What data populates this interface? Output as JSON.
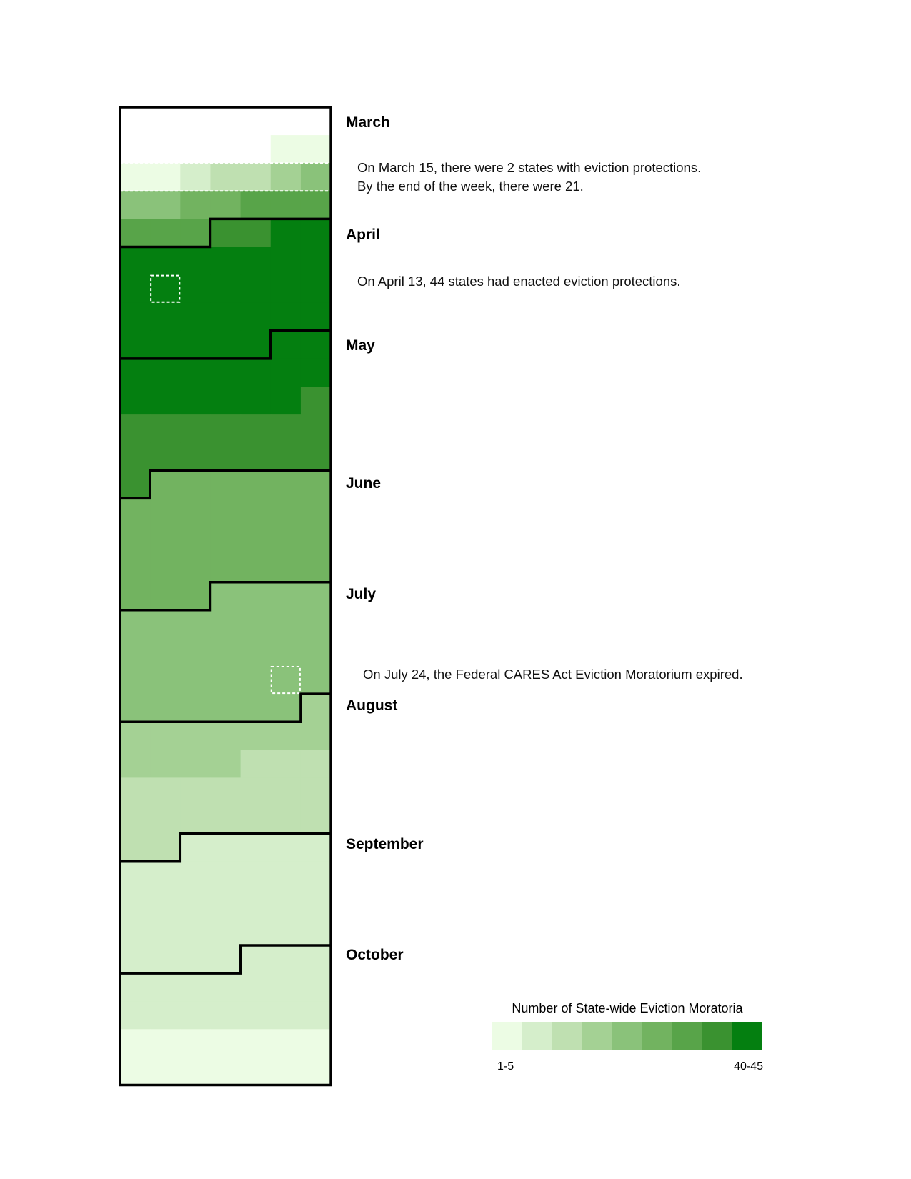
{
  "chart_data": {
    "type": "heatmap",
    "title": "",
    "layout": "calendar, one row per week (Sunday–Saturday), 7 columns",
    "months": [
      "March",
      "April",
      "May",
      "June",
      "July",
      "August",
      "September",
      "October"
    ],
    "month_starts": [
      {
        "month": "March",
        "week": 0,
        "day": 0
      },
      {
        "month": "April",
        "week": 4,
        "day": 3
      },
      {
        "month": "May",
        "week": 8,
        "day": 5
      },
      {
        "month": "June",
        "week": 13,
        "day": 1
      },
      {
        "month": "July",
        "week": 17,
        "day": 3
      },
      {
        "month": "August",
        "week": 21,
        "day": 6
      },
      {
        "month": "September",
        "week": 26,
        "day": 2
      },
      {
        "month": "October",
        "week": 30,
        "day": 4
      }
    ],
    "value_meaning": "color level index 1-9 (0 = none)",
    "weeks": [
      [
        0,
        0,
        0,
        0,
        0,
        0,
        0
      ],
      [
        0,
        0,
        0,
        0,
        0,
        1,
        1
      ],
      [
        1,
        1,
        2,
        3,
        3,
        4,
        5
      ],
      [
        5,
        5,
        6,
        6,
        7,
        7,
        7
      ],
      [
        7,
        7,
        7,
        8,
        8,
        9,
        9
      ],
      [
        9,
        9,
        9,
        9,
        9,
        9,
        9
      ],
      [
        9,
        9,
        9,
        9,
        9,
        9,
        9
      ],
      [
        9,
        9,
        9,
        9,
        9,
        9,
        9
      ],
      [
        9,
        9,
        9,
        9,
        9,
        9,
        9
      ],
      [
        9,
        9,
        9,
        9,
        9,
        9,
        9
      ],
      [
        9,
        9,
        9,
        9,
        9,
        9,
        8
      ],
      [
        8,
        8,
        8,
        8,
        8,
        8,
        8
      ],
      [
        8,
        8,
        8,
        8,
        8,
        8,
        8
      ],
      [
        8,
        6,
        6,
        6,
        6,
        6,
        6
      ],
      [
        6,
        6,
        6,
        6,
        6,
        6,
        6
      ],
      [
        6,
        6,
        6,
        6,
        6,
        6,
        6
      ],
      [
        6,
        6,
        6,
        6,
        6,
        6,
        6
      ],
      [
        6,
        6,
        6,
        5,
        5,
        5,
        5
      ],
      [
        5,
        5,
        5,
        5,
        5,
        5,
        5
      ],
      [
        5,
        5,
        5,
        5,
        5,
        5,
        5
      ],
      [
        5,
        5,
        5,
        5,
        5,
        5,
        5
      ],
      [
        5,
        5,
        5,
        5,
        5,
        5,
        4
      ],
      [
        4,
        4,
        4,
        4,
        4,
        4,
        4
      ],
      [
        4,
        4,
        4,
        4,
        3,
        3,
        3
      ],
      [
        3,
        3,
        3,
        3,
        3,
        3,
        3
      ],
      [
        3,
        3,
        3,
        3,
        3,
        3,
        3
      ],
      [
        3,
        3,
        2,
        2,
        2,
        2,
        2
      ],
      [
        2,
        2,
        2,
        2,
        2,
        2,
        2
      ],
      [
        2,
        2,
        2,
        2,
        2,
        2,
        2
      ],
      [
        2,
        2,
        2,
        2,
        2,
        2,
        2
      ],
      [
        2,
        2,
        2,
        2,
        2,
        2,
        2
      ],
      [
        2,
        2,
        2,
        2,
        2,
        2,
        2
      ],
      [
        2,
        2,
        2,
        2,
        2,
        2,
        2
      ],
      [
        1,
        1,
        1,
        1,
        1,
        1,
        1
      ],
      [
        1,
        1,
        1,
        1,
        1,
        1,
        1
      ]
    ],
    "highlights": [
      {
        "type": "week",
        "week": 2
      },
      {
        "type": "day",
        "week": 6,
        "day": 1
      },
      {
        "type": "day",
        "week": 20,
        "day": 5
      }
    ],
    "colors": [
      "#ffffff",
      "#ecfce4",
      "#d5eecb",
      "#bfe0b1",
      "#a4d194",
      "#8ac27a",
      "#72b360",
      "#58a449",
      "#3a9230",
      "#047f10"
    ],
    "legend": {
      "title": "Number of State-wide Eviction Moratoria",
      "min_label": "1-5",
      "max_label": "40-45"
    }
  },
  "annotations": {
    "march_line1": "On March 15, there were 2 states with eviction protections.",
    "march_line2": "By the end of the week, there were 21.",
    "april": "On April 13, 44 states had enacted eviction protections.",
    "july": "On July 24, the Federal CARES Act Eviction Moratorium expired."
  }
}
